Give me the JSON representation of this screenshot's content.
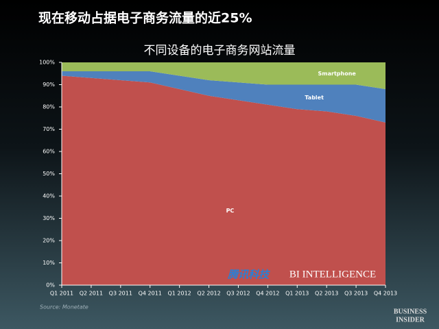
{
  "page": {
    "headline": "现在移动占据电子商务流量的近25%",
    "watermarks": [
      "腾讯科技",
      "BI INTELLIGENCE"
    ],
    "brand": [
      "BUSINESS",
      "INSIDER"
    ]
  },
  "chart_data": {
    "type": "stacked-area",
    "title": "不同设备的电子商务网站流量",
    "source": "Source: Monetate",
    "categories": [
      "Q1 2011",
      "Q2 2011",
      "Q3 2011",
      "Q4 2011",
      "Q1 2012",
      "Q2 2012",
      "Q3 2012",
      "Q4 2012",
      "Q1 2013",
      "Q2 2013",
      "Q3 2013",
      "Q4 2013"
    ],
    "series": [
      {
        "name": "PC",
        "color": "#c0504d",
        "values": [
          94,
          93,
          92,
          91,
          88,
          85,
          83,
          81,
          79,
          78,
          76,
          73
        ]
      },
      {
        "name": "Tablet",
        "color": "#4f81bd",
        "values": [
          2,
          3,
          4,
          5,
          6,
          7,
          8,
          9,
          11,
          12,
          14,
          15
        ]
      },
      {
        "name": "Smartphone",
        "color": "#9bbb59",
        "values": [
          4,
          4,
          4,
          4,
          6,
          8,
          9,
          10,
          10,
          10,
          10,
          12
        ]
      }
    ],
    "ylim": [
      0,
      100
    ],
    "yticks": [
      {
        "value": 0,
        "label": "0%"
      },
      {
        "value": 10,
        "label": "10%"
      },
      {
        "value": 20,
        "label": "20%"
      },
      {
        "value": 30,
        "label": "30%"
      },
      {
        "value": 40,
        "label": "40%"
      },
      {
        "value": 50,
        "label": "50%"
      },
      {
        "value": 60,
        "label": "60%"
      },
      {
        "value": 70,
        "label": "70%"
      },
      {
        "value": 80,
        "label": "80%"
      },
      {
        "value": 90,
        "label": "90%"
      },
      {
        "value": 100,
        "label": "100%"
      }
    ]
  }
}
